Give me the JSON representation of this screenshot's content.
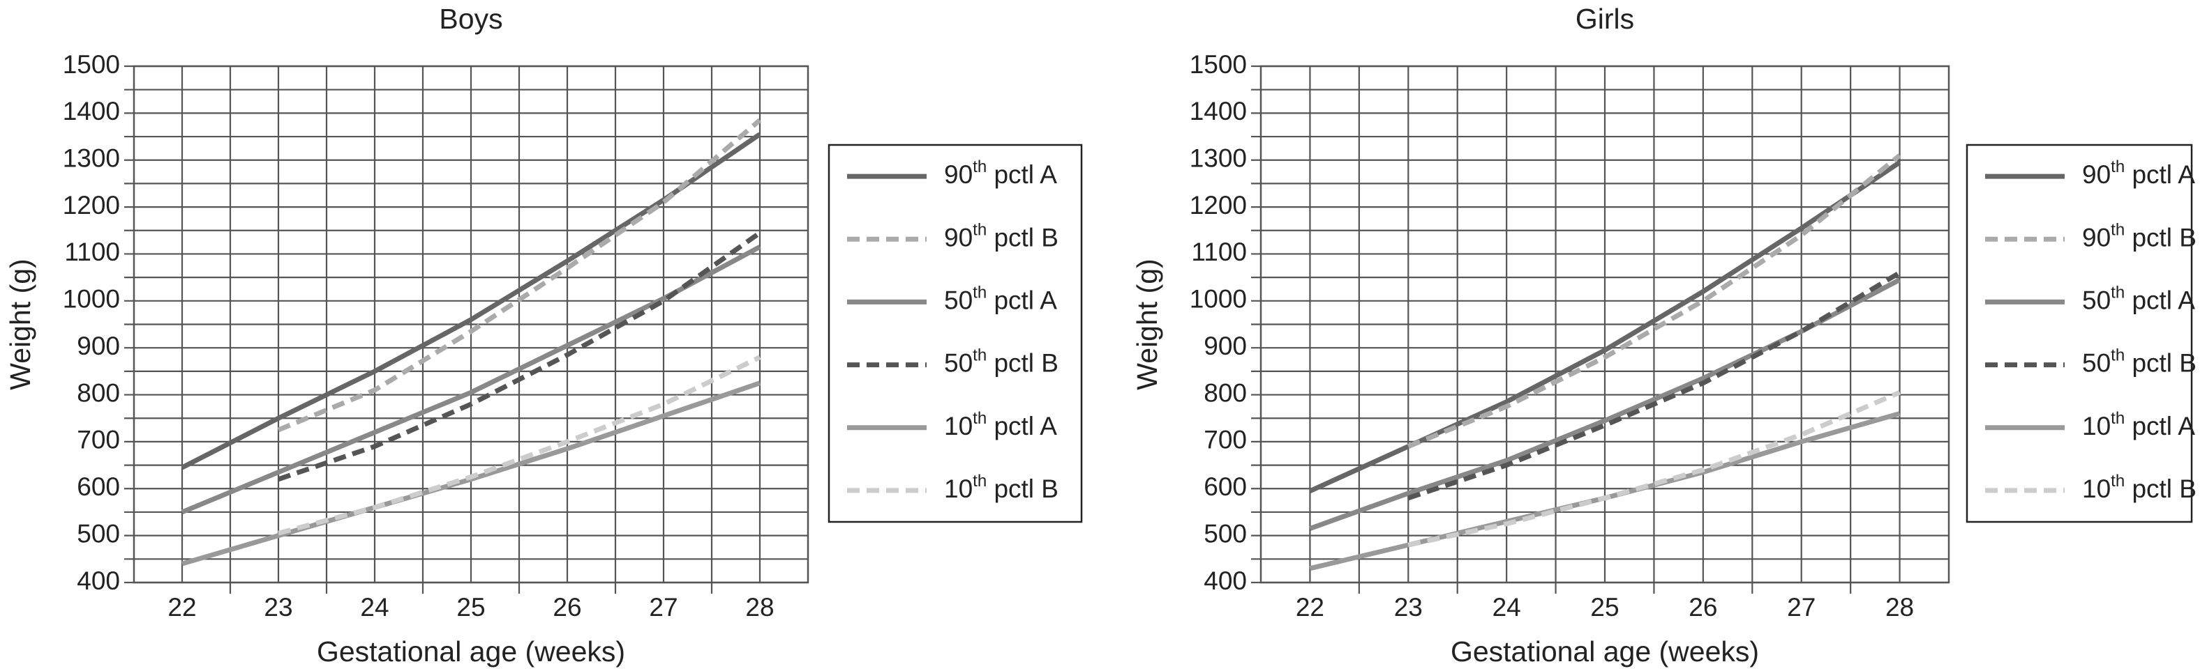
{
  "chart_data": [
    {
      "type": "line",
      "title": "Boys",
      "x_label": "Gestational age (weeks)",
      "y_label": "Weight (g)",
      "x": [
        22,
        23,
        24,
        25,
        26,
        27,
        28
      ],
      "xlim": [
        21.5,
        28.5
      ],
      "xticks": [
        22,
        23,
        24,
        25,
        26,
        27,
        28
      ],
      "x_minor_ticks": [
        22.5,
        23.5,
        24.5,
        25.5,
        26.5,
        27.5
      ],
      "ylim": [
        400,
        1500
      ],
      "yticks": [
        400,
        500,
        600,
        700,
        800,
        900,
        1000,
        1100,
        1200,
        1300,
        1400,
        1500
      ],
      "y_minor_ticks": [
        450,
        550,
        650,
        750,
        850,
        950,
        1050,
        1150,
        1250,
        1350,
        1450
      ],
      "grid": true,
      "legend": "right",
      "series": [
        {
          "name": "90th pctl A",
          "color": "#666666",
          "dashed": false,
          "values": [
            645,
            750,
            850,
            960,
            1085,
            1215,
            1355
          ]
        },
        {
          "name": "90th pctl B",
          "color": "#aaaaaa",
          "dashed": true,
          "values": [
            null,
            725,
            810,
            935,
            1070,
            1210,
            1385
          ]
        },
        {
          "name": "50th pctl A",
          "color": "#888888",
          "dashed": false,
          "values": [
            550,
            635,
            720,
            805,
            905,
            1005,
            1115
          ]
        },
        {
          "name": "50th pctl B",
          "color": "#555555",
          "dashed": true,
          "values": [
            null,
            620,
            690,
            780,
            885,
            1000,
            1145
          ]
        },
        {
          "name": "10th pctl A",
          "color": "#999999",
          "dashed": false,
          "values": [
            440,
            500,
            560,
            620,
            685,
            755,
            825
          ]
        },
        {
          "name": "10th pctl B",
          "color": "#cccccc",
          "dashed": true,
          "values": [
            null,
            505,
            560,
            625,
            700,
            780,
            880
          ]
        }
      ]
    },
    {
      "type": "line",
      "title": "Girls",
      "x_label": "Gestational age (weeks)",
      "y_label": "Weight (g)",
      "x": [
        22,
        23,
        24,
        25,
        26,
        27,
        28
      ],
      "xlim": [
        21.5,
        28.5
      ],
      "xticks": [
        22,
        23,
        24,
        25,
        26,
        27,
        28
      ],
      "x_minor_ticks": [
        22.5,
        23.5,
        24.5,
        25.5,
        26.5,
        27.5
      ],
      "ylim": [
        400,
        1500
      ],
      "yticks": [
        400,
        500,
        600,
        700,
        800,
        900,
        1000,
        1100,
        1200,
        1300,
        1400,
        1500
      ],
      "y_minor_ticks": [
        450,
        550,
        650,
        750,
        850,
        950,
        1050,
        1150,
        1250,
        1350,
        1450
      ],
      "grid": true,
      "legend": "right",
      "series": [
        {
          "name": "90th pctl A",
          "color": "#666666",
          "dashed": false,
          "values": [
            595,
            690,
            785,
            895,
            1020,
            1155,
            1295
          ]
        },
        {
          "name": "90th pctl B",
          "color": "#aaaaaa",
          "dashed": true,
          "values": [
            null,
            690,
            775,
            880,
            1000,
            1140,
            1310
          ]
        },
        {
          "name": "50th pctl A",
          "color": "#888888",
          "dashed": false,
          "values": [
            515,
            590,
            660,
            745,
            835,
            935,
            1045
          ]
        },
        {
          "name": "50th pctl B",
          "color": "#555555",
          "dashed": true,
          "values": [
            null,
            580,
            650,
            735,
            825,
            935,
            1060
          ]
        },
        {
          "name": "10th pctl A",
          "color": "#999999",
          "dashed": false,
          "values": [
            430,
            480,
            530,
            580,
            635,
            700,
            760
          ]
        },
        {
          "name": "10th pctl B",
          "color": "#cccccc",
          "dashed": true,
          "values": [
            null,
            480,
            525,
            580,
            640,
            715,
            805
          ]
        }
      ]
    }
  ]
}
